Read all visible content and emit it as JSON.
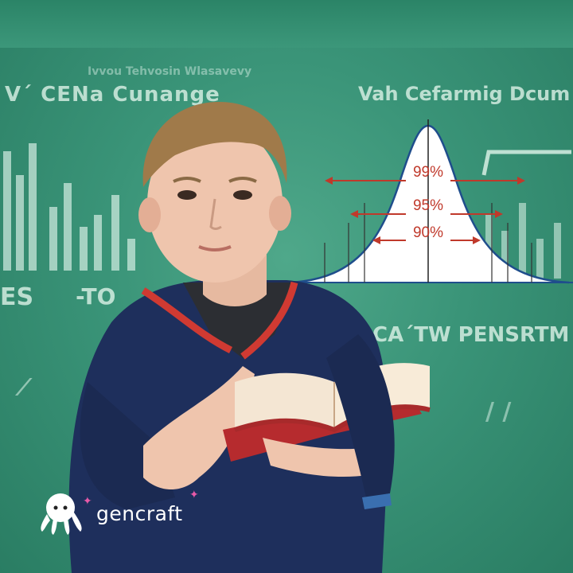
{
  "board": {
    "heading_left": "V´ CENa Cunange",
    "heading_right": "Vah Cefarmig Dcum",
    "subheading_right": "CA´TW PENSRTM",
    "scribble_top": "Ivvou Tehvosin Wlasavevy",
    "left_marks_a": "ES",
    "left_marks_b": "-TO"
  },
  "curve": {
    "labels": [
      "99%",
      "95%",
      "90%"
    ],
    "colors": {
      "curve": "#1f4e8c",
      "arrow": "#c0392b",
      "fill": "#ffffff"
    }
  },
  "logo": {
    "text": "gencraft",
    "icon": "octopus-icon"
  },
  "colors": {
    "chalkboard": "#3a9478",
    "chalk": "#e1f5eb"
  }
}
